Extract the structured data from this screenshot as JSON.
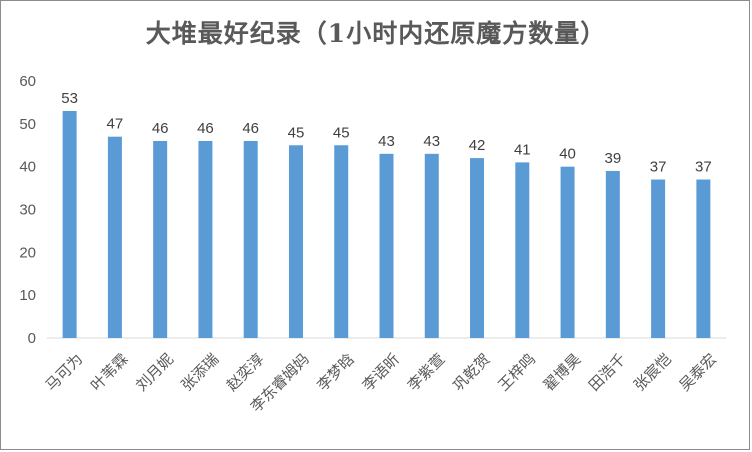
{
  "chart_data": {
    "type": "bar",
    "title": "大堆最好纪录（1小时内还原魔方数量）",
    "xlabel": "",
    "ylabel": "",
    "categories": [
      "马可为",
      "叶苇霖",
      "刘月妮",
      "张添瑞",
      "赵奕淳",
      "李东睿姆妈",
      "李梦晗",
      "李语昕",
      "李紫萱",
      "巩乾贺",
      "王梓鸣",
      "翟博昊",
      "田浩千",
      "张宸恺",
      "吴泰宏"
    ],
    "values": [
      53,
      47,
      46,
      46,
      46,
      45,
      45,
      43,
      43,
      42,
      41,
      40,
      39,
      37,
      37
    ],
    "yticks": [
      0,
      10,
      20,
      30,
      40,
      50,
      60
    ],
    "ylim": [
      0,
      60
    ],
    "grid": false,
    "bar_color": "#5b9bd5",
    "data_labels": true
  }
}
